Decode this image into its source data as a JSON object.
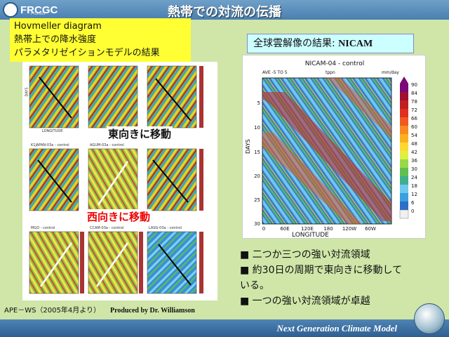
{
  "header": {
    "logo_text": "FRCGC",
    "logo_sub": "Frontier",
    "title": "熱帯での対流の伝播"
  },
  "yellow_box": {
    "line1": "Hovmeller diagram",
    "line2": "熱帯上での降水強度",
    "line3": "パラメタリゼイションモデルの結果"
  },
  "cyan_box": {
    "prefix": "全球雲解像の結果: ",
    "name": "NICAM"
  },
  "labels": {
    "east": "東向きに移動",
    "west": "西向きに移動"
  },
  "panels": {
    "captions": [
      "K1JAPAN-03a - control",
      "AGUM-03a - control",
      "",
      "MGO - control",
      "CCAM-03a - control",
      "LASG-03a - control"
    ],
    "axis_x": "LONGITUDE",
    "axis_y": "DAYS"
  },
  "nicam": {
    "title": "NICAM-04 - control",
    "subheader_left": "AVE -5 TO 5",
    "subheader_mid": "tppn",
    "subheader_right": "mm/day",
    "ylabel": "DAYS",
    "xlabel": "LONGITUDE",
    "yticks": [
      "5",
      "10",
      "15",
      "20",
      "25",
      "30"
    ],
    "xticks": [
      "0",
      "60E",
      "120E",
      "180",
      "120W",
      "60W"
    ],
    "colorbar_ticks": [
      "90",
      "84",
      "78",
      "72",
      "66",
      "60",
      "54",
      "48",
      "42",
      "36",
      "30",
      "24",
      "18",
      "12",
      "6",
      "0"
    ]
  },
  "bullets": [
    "■ 二つか三つの強い対流領域",
    "■ 約30日の周期で東向きに移動して",
    "いる。",
    "■ 一つの強い対流領域が卓越"
  ],
  "credit": {
    "left": "APE－WS（2005年4月より）",
    "right": "Produced by Dr. Williamson"
  },
  "footer": {
    "text": "Next Generation Climate Model"
  }
}
